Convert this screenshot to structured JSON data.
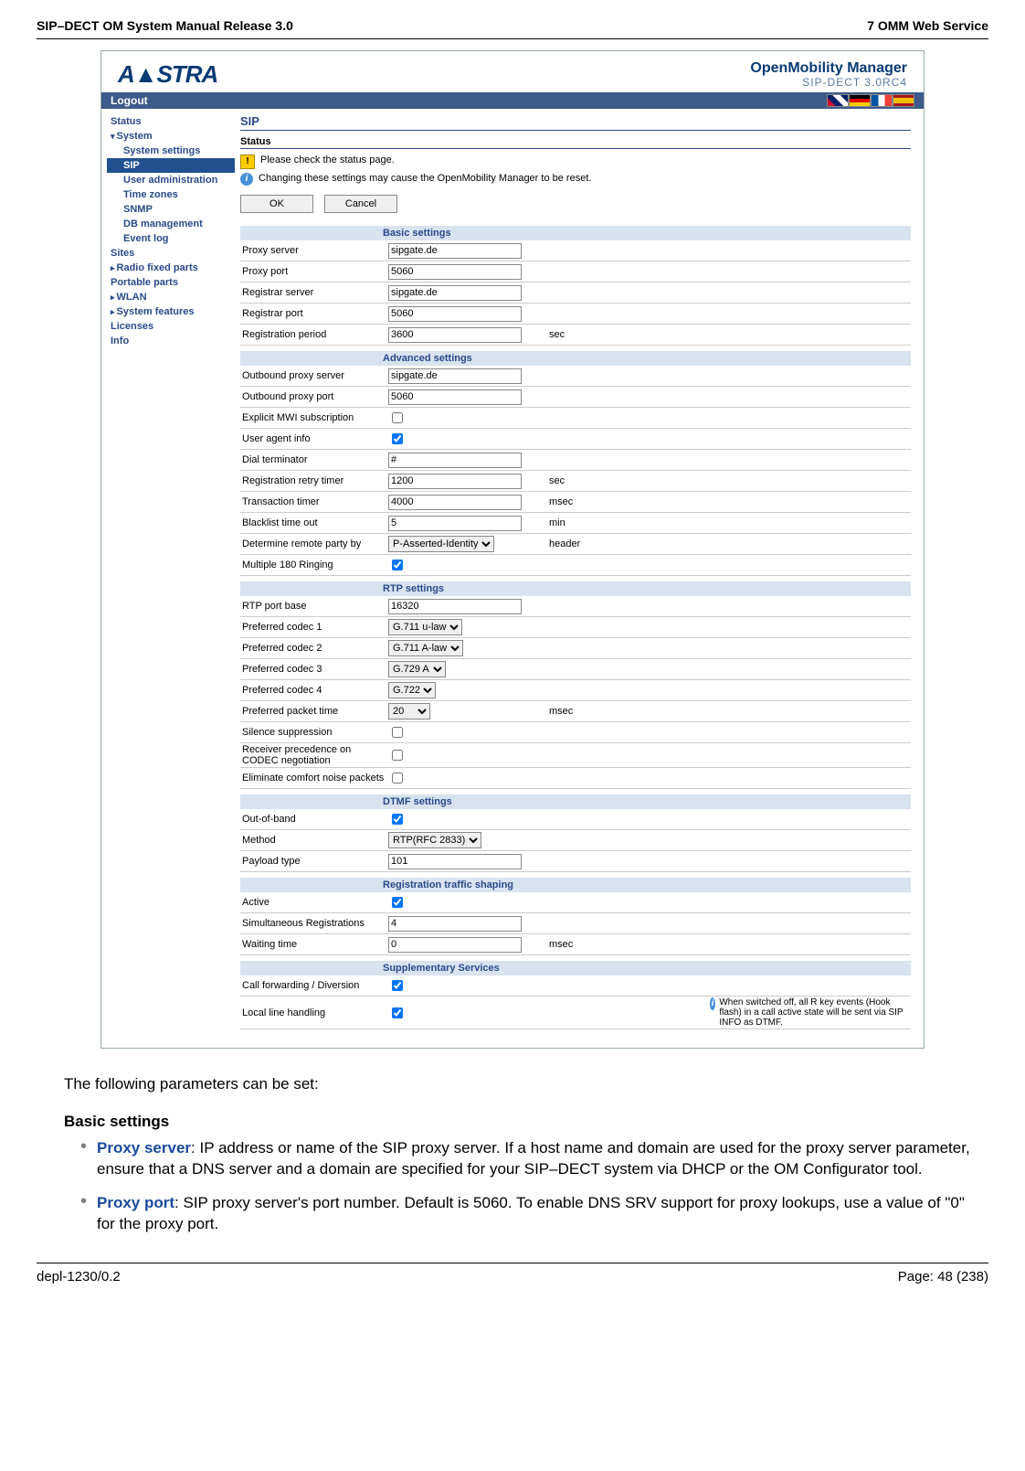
{
  "doc": {
    "header_left": "SIP–DECT OM System Manual Release 3.0",
    "header_right": "7 OMM Web Service",
    "footer_left": "depl-1230/0.2",
    "footer_right": "Page: 48 (238)"
  },
  "brand": {
    "logo": "A▲STRA",
    "title": "OpenMobility Manager",
    "subtitle": "SIP-DECT 3.0RC4"
  },
  "topbar": {
    "logout": "Logout"
  },
  "sidebar": {
    "items": [
      {
        "label": "Status",
        "cls": "lvl1"
      },
      {
        "label": "System",
        "cls": "lvl1 expanded"
      },
      {
        "label": "System settings",
        "cls": "lvl2"
      },
      {
        "label": "SIP",
        "cls": "lvl2 active"
      },
      {
        "label": "User administration",
        "cls": "lvl2"
      },
      {
        "label": "Time zones",
        "cls": "lvl2"
      },
      {
        "label": "SNMP",
        "cls": "lvl2"
      },
      {
        "label": "DB management",
        "cls": "lvl2"
      },
      {
        "label": "Event log",
        "cls": "lvl2"
      },
      {
        "label": "Sites",
        "cls": "lvl1"
      },
      {
        "label": "Radio fixed parts",
        "cls": "lvl1 caret"
      },
      {
        "label": "Portable parts",
        "cls": "lvl1"
      },
      {
        "label": "WLAN",
        "cls": "lvl1 caret"
      },
      {
        "label": "System features",
        "cls": "lvl1 caret"
      },
      {
        "label": "Licenses",
        "cls": "lvl1"
      },
      {
        "label": "Info",
        "cls": "lvl1"
      }
    ]
  },
  "main": {
    "title": "SIP",
    "status_title": "Status",
    "warn": "Please check the status page.",
    "info": "Changing these settings may cause the OpenMobility Manager to be reset.",
    "ok": "OK",
    "cancel": "Cancel",
    "sections": {
      "basic": {
        "title": "Basic settings",
        "rows": [
          {
            "label": "Proxy server",
            "type": "text",
            "value": "sipgate.de"
          },
          {
            "label": "Proxy port",
            "type": "text",
            "value": "5060"
          },
          {
            "label": "Registrar server",
            "type": "text",
            "value": "sipgate.de"
          },
          {
            "label": "Registrar port",
            "type": "text",
            "value": "5060"
          },
          {
            "label": "Registration period",
            "type": "text",
            "value": "3600",
            "suffix": "sec"
          }
        ]
      },
      "advanced": {
        "title": "Advanced settings",
        "rows": [
          {
            "label": "Outbound proxy server",
            "type": "text",
            "value": "sipgate.de"
          },
          {
            "label": "Outbound proxy port",
            "type": "text",
            "value": "5060"
          },
          {
            "label": "Explicit MWI subscription",
            "type": "checkbox",
            "checked": false
          },
          {
            "label": "User agent info",
            "type": "checkbox",
            "checked": true
          },
          {
            "label": "Dial terminator",
            "type": "text",
            "value": "#"
          },
          {
            "label": "Registration retry timer",
            "type": "text",
            "value": "1200",
            "suffix": "sec"
          },
          {
            "label": "Transaction timer",
            "type": "text",
            "value": "4000",
            "suffix": "msec"
          },
          {
            "label": "Blacklist time out",
            "type": "text",
            "value": "5",
            "suffix": "min"
          },
          {
            "label": "Determine remote party by",
            "type": "select",
            "value": "P-Asserted-Identity",
            "suffix": "header"
          },
          {
            "label": "Multiple 180 Ringing",
            "type": "checkbox",
            "checked": true
          }
        ]
      },
      "rtp": {
        "title": "RTP settings",
        "rows": [
          {
            "label": "RTP port base",
            "type": "text",
            "value": "16320"
          },
          {
            "label": "Preferred codec 1",
            "type": "select",
            "value": "G.711 u-law"
          },
          {
            "label": "Preferred codec 2",
            "type": "select",
            "value": "G.711 A-law"
          },
          {
            "label": "Preferred codec 3",
            "type": "select",
            "value": "G.729 A"
          },
          {
            "label": "Preferred codec 4",
            "type": "select",
            "value": "G.722"
          },
          {
            "label": "Preferred packet time",
            "type": "select_short",
            "value": "20",
            "suffix": "msec"
          },
          {
            "label": "Silence suppression",
            "type": "checkbox",
            "checked": false
          },
          {
            "label": "Receiver precedence on CODEC negotiation",
            "type": "checkbox",
            "checked": false
          },
          {
            "label": "Eliminate comfort noise packets",
            "type": "checkbox",
            "checked": false
          }
        ]
      },
      "dtmf": {
        "title": "DTMF settings",
        "rows": [
          {
            "label": "Out-of-band",
            "type": "checkbox",
            "checked": true
          },
          {
            "label": "Method",
            "type": "select",
            "value": "RTP(RFC 2833)"
          },
          {
            "label": "Payload type",
            "type": "text",
            "value": "101"
          }
        ]
      },
      "regshape": {
        "title": "Registration traffic shaping",
        "rows": [
          {
            "label": "Active",
            "type": "checkbox",
            "checked": true
          },
          {
            "label": "Simultaneous Registrations",
            "type": "text",
            "value": "4"
          },
          {
            "label": "Waiting time",
            "type": "text",
            "value": "0",
            "suffix": "msec"
          }
        ]
      },
      "supp": {
        "title": "Supplementary Services",
        "rows": [
          {
            "label": "Call forwarding / Diversion",
            "type": "checkbox",
            "checked": true
          },
          {
            "label": "Local line handling",
            "type": "checkbox",
            "checked": true,
            "note": "When switched off, all R key events (Hook flash) in a call active state will be sent via SIP INFO as DTMF."
          }
        ]
      }
    }
  },
  "body": {
    "intro": "The following parameters can be set:",
    "heading": "Basic settings",
    "b1_term": "Proxy server",
    "b1_rest": ": IP address or name of the SIP proxy server. If a host name and domain are used for the proxy server parameter, ensure that a DNS server and a domain are specified for your SIP–DECT system via DHCP or the OM Configurator tool.",
    "b2_term": "Proxy port",
    "b2_rest": ": SIP proxy server's port number. Default is 5060. To enable DNS SRV support for proxy lookups, use a value of \"0\" for the proxy port."
  }
}
